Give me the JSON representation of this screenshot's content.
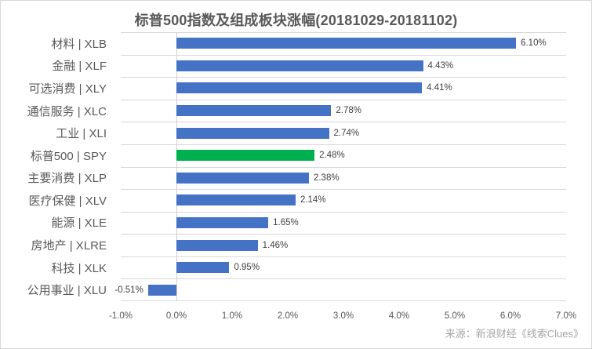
{
  "chart_data": {
    "type": "bar",
    "orientation": "horizontal",
    "title": "标普500指数及组成板块涨幅(20181029-20181102)",
    "categories": [
      "材料 | XLB",
      "金融 | XLF",
      "可选消费 | XLY",
      "通信服务 | XLC",
      "工业 | XLI",
      "标普500 | SPY",
      "主要消费 | XLP",
      "医疗保健 | XLV",
      "能源 | XLE",
      "房地产 | XLRE",
      "科技 | XLK",
      "公用事业 | XLU"
    ],
    "values": [
      6.1,
      4.43,
      4.41,
      2.78,
      2.74,
      2.48,
      2.38,
      2.14,
      1.65,
      1.46,
      0.95,
      -0.51
    ],
    "value_labels": [
      "6.10%",
      "4.43%",
      "4.41%",
      "2.78%",
      "2.74%",
      "2.48%",
      "2.38%",
      "2.14%",
      "1.65%",
      "1.46%",
      "0.95%",
      "-0.51%"
    ],
    "highlight_index": 5,
    "xticks": [
      "-1.0%",
      "0.0%",
      "1.0%",
      "2.0%",
      "3.0%",
      "4.0%",
      "5.0%",
      "6.0%",
      "7.0%"
    ],
    "xlim": [
      -1.0,
      7.0
    ],
    "xlabel": "",
    "ylabel": "",
    "grid": "horizontal category gridlines, zero axis line",
    "legend": "none",
    "colors": {
      "bar": "#4472c4",
      "highlight": "#00b050",
      "gridline": "#d9d9d9",
      "title_text": "#595959",
      "axis_text": "#595959",
      "data_label_text": "#404040",
      "source_text": "#a6a6a6"
    },
    "source": "来源：新浪财经《线索Clues》"
  }
}
